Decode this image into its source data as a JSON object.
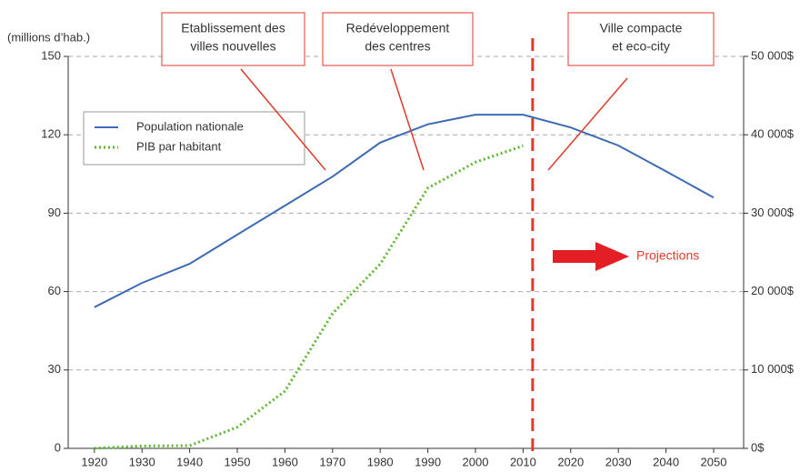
{
  "chart_data": {
    "type": "line",
    "y_label": "(millions d’hab.)",
    "x": [
      1920,
      1930,
      1940,
      1950,
      1960,
      1970,
      1980,
      1990,
      2000,
      2010,
      2020,
      2030,
      2040,
      2050
    ],
    "xlim": [
      1914.5,
      2056.3
    ],
    "xticks": [
      1920,
      1930,
      1940,
      1950,
      1960,
      1970,
      1980,
      1990,
      2000,
      2010,
      2020,
      2030,
      2040,
      2050
    ],
    "ylim": [
      0,
      150
    ],
    "yticks": [
      0,
      30,
      60,
      90,
      120,
      150
    ],
    "y2lim": [
      0,
      50000
    ],
    "y2ticks": [
      {
        "value": 0,
        "label": "0$"
      },
      {
        "value": 10000,
        "label": "10 000$"
      },
      {
        "value": 20000,
        "label": "20 000$"
      },
      {
        "value": 30000,
        "label": "30 000$"
      },
      {
        "value": 40000,
        "label": "40 000$"
      },
      {
        "value": 50000,
        "label": "50 000$"
      }
    ],
    "grid": true,
    "series": [
      {
        "name": "Population nationale",
        "color": "#3d6bb3",
        "style": "solid",
        "values": [
          54,
          63.3,
          70.6,
          81.8,
          92.9,
          104,
          117,
          124,
          127.7,
          127.7,
          122.8,
          115.9,
          106,
          96
        ]
      },
      {
        "name": "PIB par habitant",
        "color": "#5cb82e",
        "style": "dotted",
        "axis": "y2",
        "values": [
          0,
          300,
          350,
          2700,
          7300,
          17200,
          23500,
          33200,
          36500,
          38600,
          null,
          null,
          null,
          null
        ]
      }
    ],
    "projection_x": 2012,
    "projection_label": "Projections",
    "annotations": [
      [
        "Etablissement des",
        "villes nouvelles"
      ],
      [
        "Redéveloppement",
        "des centres"
      ],
      [
        "Ville compacte",
        "et eco-city"
      ]
    ]
  }
}
